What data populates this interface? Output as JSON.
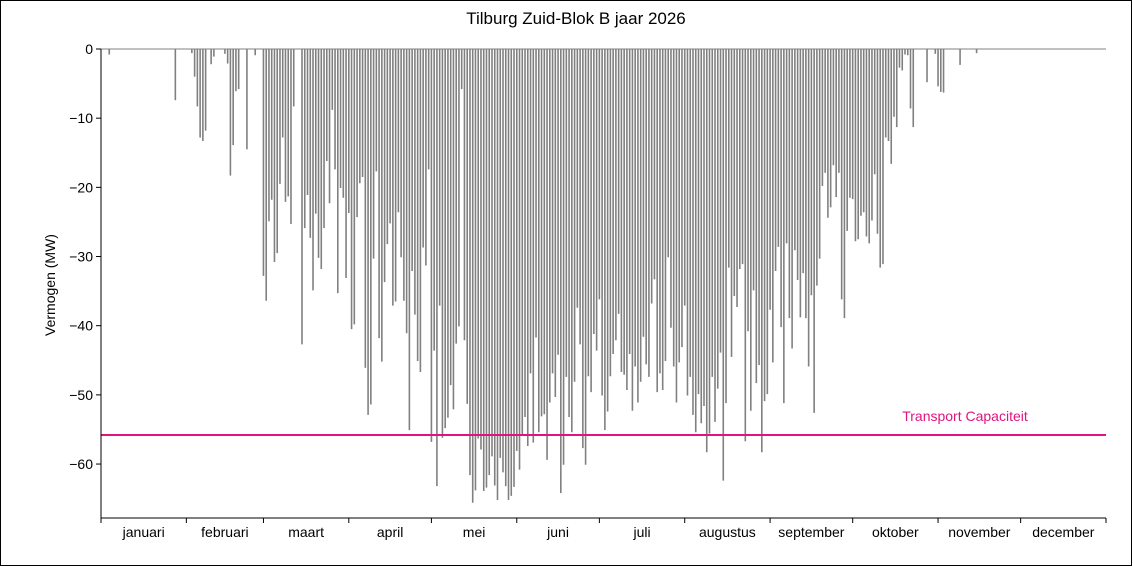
{
  "chart_data": {
    "type": "bar",
    "title": "Tilburg Zuid-Blok B jaar 2026",
    "xlabel": "",
    "ylabel": "Vermogen (MW)",
    "ylim": [
      -67.8,
      0
    ],
    "yticks": [
      0,
      -10,
      -20,
      -30,
      -40,
      -50,
      -60
    ],
    "ytick_labels": [
      "0",
      "−10",
      "−20",
      "−30",
      "−40",
      "−50",
      "−60"
    ],
    "grid": false,
    "bar_color": "#808080",
    "x_unit": "day of year",
    "months": [
      "januari",
      "februari",
      "maart",
      "april",
      "mei",
      "juni",
      "juli",
      "augustus",
      "september",
      "oktober",
      "november",
      "december"
    ],
    "threshold": {
      "label": "Transport Capaciteit",
      "value": -55.8,
      "color": "#e0147f"
    },
    "series": [
      {
        "values": [
          [
            3,
            -0.8
          ],
          [
            27,
            -7.4
          ],
          [
            33,
            -0.6
          ],
          [
            34,
            -4
          ],
          [
            35,
            -8.3
          ],
          [
            36,
            -12.8
          ],
          [
            37,
            -13.3
          ],
          [
            38,
            -11.8
          ],
          [
            40,
            -2.2
          ],
          [
            41,
            -1.1
          ],
          [
            45,
            -0.7
          ],
          [
            46,
            -2.1
          ],
          [
            47,
            -18.3
          ],
          [
            48,
            -13.9
          ],
          [
            49,
            -6.1
          ],
          [
            50,
            -5.8
          ],
          [
            53,
            -14.5
          ],
          [
            56,
            -0.9
          ],
          [
            59,
            -32.8
          ],
          [
            60,
            -36.4
          ],
          [
            61,
            -24.9
          ],
          [
            62,
            -21.8
          ],
          [
            63,
            -30.8
          ],
          [
            64,
            -29.5
          ],
          [
            65,
            -19.5
          ],
          [
            66,
            -12.8
          ],
          [
            67,
            -22.1
          ],
          [
            68,
            -21.3
          ],
          [
            69,
            -25.3
          ],
          [
            70,
            -8.3
          ],
          [
            73,
            -42.7
          ],
          [
            74,
            -25.9
          ],
          [
            75,
            -21.1
          ],
          [
            76,
            -27.3
          ],
          [
            77,
            -34.9
          ],
          [
            78,
            -23.8
          ],
          [
            79,
            -30.2
          ],
          [
            80,
            -31.8
          ],
          [
            81,
            -25.9
          ],
          [
            82,
            -16.2
          ],
          [
            83,
            -22.3
          ],
          [
            84,
            -8.8
          ],
          [
            85,
            -17.4
          ],
          [
            86,
            -35.3
          ],
          [
            87,
            -20.1
          ],
          [
            88,
            -21.5
          ],
          [
            89,
            -33.1
          ],
          [
            90,
            -23.7
          ],
          [
            91,
            -40.5
          ],
          [
            92,
            -39.8
          ],
          [
            93,
            -24.3
          ],
          [
            94,
            -19.4
          ],
          [
            95,
            -18.5
          ],
          [
            96,
            -46.1
          ],
          [
            97,
            -52.9
          ],
          [
            98,
            -51.4
          ],
          [
            99,
            -30.3
          ],
          [
            100,
            -17.7
          ],
          [
            101,
            -41.8
          ],
          [
            102,
            -45.2
          ],
          [
            103,
            -33.7
          ],
          [
            104,
            -28.2
          ],
          [
            105,
            -25.2
          ],
          [
            106,
            -37.1
          ],
          [
            107,
            -36.5
          ],
          [
            108,
            -23.6
          ],
          [
            109,
            -30.1
          ],
          [
            110,
            -36.4
          ],
          [
            111,
            -41.1
          ],
          [
            112,
            -55.1
          ],
          [
            113,
            -32.1
          ],
          [
            114,
            -38.4
          ],
          [
            115,
            -45.1
          ],
          [
            116,
            -46.7
          ],
          [
            117,
            -28.7
          ],
          [
            118,
            -31.3
          ],
          [
            119,
            -17.4
          ],
          [
            120,
            -56.8
          ],
          [
            121,
            -43.6
          ],
          [
            122,
            -63.2
          ],
          [
            123,
            -37.1
          ],
          [
            124,
            -56.2
          ],
          [
            125,
            -54.8
          ],
          [
            126,
            -53.3
          ],
          [
            127,
            -48.6
          ],
          [
            128,
            -52.1
          ],
          [
            129,
            -42.6
          ],
          [
            130,
            -40.1
          ],
          [
            131,
            -5.8
          ],
          [
            132,
            -42.1
          ],
          [
            133,
            -51.3
          ],
          [
            134,
            -61.6
          ],
          [
            135,
            -65.6
          ],
          [
            136,
            -63.8
          ],
          [
            137,
            -56.3
          ],
          [
            138,
            -57.9
          ],
          [
            139,
            -63.9
          ],
          [
            140,
            -63.4
          ],
          [
            141,
            -61.6
          ],
          [
            142,
            -58.9
          ],
          [
            143,
            -63.1
          ],
          [
            144,
            -65.2
          ],
          [
            145,
            -59.1
          ],
          [
            146,
            -61.2
          ],
          [
            147,
            -63.2
          ],
          [
            148,
            -65.2
          ],
          [
            149,
            -64.6
          ],
          [
            150,
            -63.3
          ],
          [
            151,
            -58.1
          ],
          [
            152,
            -60.8
          ],
          [
            153,
            -55.9
          ],
          [
            154,
            -53.2
          ],
          [
            155,
            -57.4
          ],
          [
            156,
            -46.9
          ],
          [
            157,
            -56.9
          ],
          [
            158,
            -41.7
          ],
          [
            159,
            -55.4
          ],
          [
            160,
            -53.1
          ],
          [
            161,
            -52.8
          ],
          [
            162,
            -59.4
          ],
          [
            163,
            -51.1
          ],
          [
            164,
            -46.9
          ],
          [
            165,
            -50.3
          ],
          [
            166,
            -44.2
          ],
          [
            167,
            -64.2
          ],
          [
            168,
            -60.1
          ],
          [
            169,
            -47.4
          ],
          [
            170,
            -53.2
          ],
          [
            171,
            -55.4
          ],
          [
            172,
            -48.1
          ],
          [
            173,
            -37.4
          ],
          [
            174,
            -42.7
          ],
          [
            175,
            -57.7
          ],
          [
            176,
            -60.1
          ],
          [
            177,
            -47.3
          ],
          [
            178,
            -49.6
          ],
          [
            179,
            -41.2
          ],
          [
            180,
            -43.6
          ],
          [
            181,
            -36.2
          ],
          [
            182,
            -50.1
          ],
          [
            183,
            -55.1
          ],
          [
            184,
            -52.4
          ],
          [
            185,
            -47.3
          ],
          [
            186,
            -44.1
          ],
          [
            187,
            -42.1
          ],
          [
            188,
            -38.3
          ],
          [
            189,
            -46.7
          ],
          [
            190,
            -47.1
          ],
          [
            191,
            -49.3
          ],
          [
            192,
            -44.1
          ],
          [
            193,
            -52.3
          ],
          [
            194,
            -45.9
          ],
          [
            195,
            -51.1
          ],
          [
            196,
            -48.1
          ],
          [
            197,
            -41.6
          ],
          [
            198,
            -45.6
          ],
          [
            199,
            -47.4
          ],
          [
            200,
            -36.8
          ],
          [
            201,
            -33.3
          ],
          [
            202,
            -49.6
          ],
          [
            203,
            -46.9
          ],
          [
            204,
            -49.3
          ],
          [
            205,
            -45.1
          ],
          [
            206,
            -30.1
          ],
          [
            207,
            -40.3
          ],
          [
            208,
            -45.9
          ],
          [
            209,
            -51.1
          ],
          [
            210,
            -45.3
          ],
          [
            211,
            -43.1
          ],
          [
            212,
            -37.1
          ],
          [
            213,
            -50.1
          ],
          [
            214,
            -47.4
          ],
          [
            215,
            -52.9
          ],
          [
            216,
            -55.4
          ],
          [
            217,
            -49.9
          ],
          [
            218,
            -54.1
          ],
          [
            219,
            -51.6
          ],
          [
            220,
            -58.3
          ],
          [
            221,
            -55.6
          ],
          [
            222,
            -47.4
          ],
          [
            223,
            -53.9
          ],
          [
            224,
            -49.1
          ],
          [
            225,
            -43.9
          ],
          [
            226,
            -62.4
          ],
          [
            227,
            -51.2
          ],
          [
            228,
            -31.6
          ],
          [
            229,
            -44.5
          ],
          [
            230,
            -35.7
          ],
          [
            231,
            -37.3
          ],
          [
            232,
            -31.8
          ],
          [
            233,
            -31.1
          ],
          [
            234,
            -56.7
          ],
          [
            235,
            -40.8
          ],
          [
            236,
            -52.3
          ],
          [
            237,
            -34.9
          ],
          [
            238,
            -48.3
          ],
          [
            239,
            -45.7
          ],
          [
            240,
            -58.3
          ],
          [
            241,
            -50.9
          ],
          [
            242,
            -49.9
          ],
          [
            243,
            -37.7
          ],
          [
            244,
            -45.3
          ],
          [
            245,
            -32.1
          ],
          [
            246,
            -28.6
          ],
          [
            247,
            -40.2
          ],
          [
            248,
            -51.2
          ],
          [
            249,
            -28.1
          ],
          [
            250,
            -38.9
          ],
          [
            251,
            -43.3
          ],
          [
            252,
            -29.1
          ],
          [
            253,
            -33.4
          ],
          [
            254,
            -38.8
          ],
          [
            255,
            -32.4
          ],
          [
            256,
            -38.9
          ],
          [
            257,
            -45.9
          ],
          [
            258,
            -35.6
          ],
          [
            259,
            -52.6
          ],
          [
            260,
            -34.2
          ],
          [
            261,
            -30.3
          ],
          [
            262,
            -19.8
          ],
          [
            263,
            -17.9
          ],
          [
            264,
            -24.4
          ],
          [
            265,
            -22.9
          ],
          [
            266,
            -16.8
          ],
          [
            267,
            -21.4
          ],
          [
            268,
            -17.9
          ],
          [
            269,
            -36.2
          ],
          [
            270,
            -38.9
          ],
          [
            271,
            -26.3
          ],
          [
            272,
            -21.5
          ],
          [
            273,
            -21.7
          ],
          [
            274,
            -27.8
          ],
          [
            275,
            -27.5
          ],
          [
            276,
            -24.1
          ],
          [
            277,
            -23.6
          ],
          [
            278,
            -27.1
          ],
          [
            279,
            -28.1
          ],
          [
            280,
            -24.8
          ],
          [
            281,
            -18.1
          ],
          [
            282,
            -26.7
          ],
          [
            283,
            -31.6
          ],
          [
            284,
            -31.1
          ],
          [
            285,
            -12.8
          ],
          [
            286,
            -13.3
          ],
          [
            287,
            -16.6
          ],
          [
            288,
            -9.8
          ],
          [
            289,
            -11.3
          ],
          [
            290,
            -2.7
          ],
          [
            291,
            -3.1
          ],
          [
            292,
            -0.8
          ],
          [
            293,
            -0.9
          ],
          [
            294,
            -8.6
          ],
          [
            295,
            -11.3
          ],
          [
            300,
            -4.8
          ],
          [
            303,
            -0.7
          ],
          [
            304,
            -5.4
          ],
          [
            305,
            -6.2
          ],
          [
            306,
            -6.3
          ],
          [
            312,
            -2.3
          ],
          [
            318,
            -0.6
          ]
        ]
      }
    ]
  }
}
